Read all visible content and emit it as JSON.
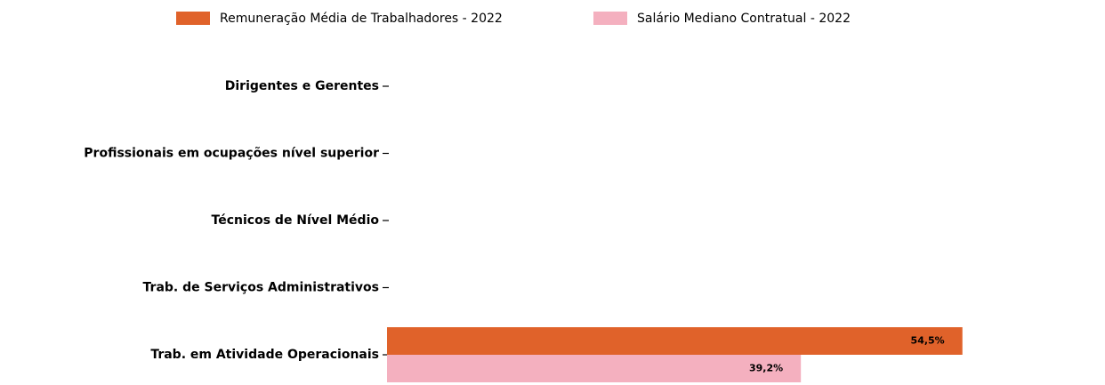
{
  "chart_data": {
    "type": "barh",
    "categories": [
      "Dirigentes e Gerentes",
      "Profissionais em ocupações nível superior",
      "Técnicos de Nível Médio",
      "Trab. de Serviços Administrativos",
      "Trab. em Atividade Operacionais"
    ],
    "series": [
      {
        "name": "Remuneração Média de Trabalhadores - 2022",
        "color": "#e0622a",
        "values": [
          null,
          null,
          null,
          null,
          54.5
        ],
        "value_labels": [
          null,
          null,
          null,
          null,
          "54,5%"
        ]
      },
      {
        "name": "Salário Mediano Contratual - 2022",
        "color": "#f4b0bf",
        "values": [
          null,
          null,
          null,
          null,
          39.2
        ],
        "value_labels": [
          null,
          null,
          null,
          null,
          "39,2%"
        ]
      }
    ],
    "xlim": [
      0,
      60
    ],
    "legend": "top"
  }
}
